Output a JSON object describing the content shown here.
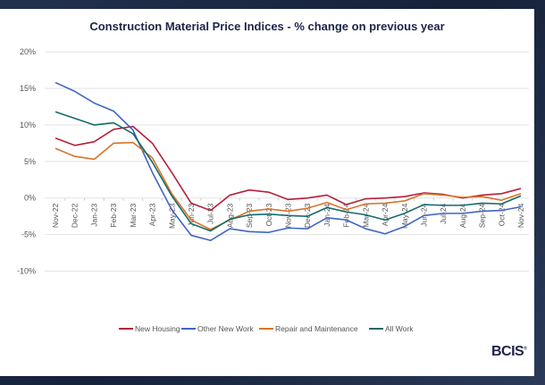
{
  "chart_data": {
    "type": "line",
    "title": "Construction Material Price Indices - % change on previous year",
    "xlabel": "",
    "ylabel": "",
    "ylim": [
      -10,
      20
    ],
    "yticks": [
      "-10%",
      "-5%",
      "0%",
      "5%",
      "10%",
      "15%",
      "20%"
    ],
    "ytick_values": [
      -10,
      -5,
      0,
      5,
      10,
      15,
      20
    ],
    "grid": true,
    "legend_position": "bottom",
    "categories": [
      "Nov-22",
      "Dec-22",
      "Jan-23",
      "Feb-23",
      "Mar-23",
      "Apr-23",
      "May-23",
      "Jun-23",
      "Jul-23",
      "Aug-23",
      "Sep-23",
      "Oct-23",
      "Nov-23",
      "Dec-23",
      "Jan-24",
      "Feb-24",
      "Mar-24",
      "Apr-24",
      "May-24",
      "Jun-24",
      "Jul-24",
      "Aug-24",
      "Sep-24",
      "Oct-24",
      "Nov-24"
    ],
    "series": [
      {
        "name": "New Housing",
        "color": "#b5213d",
        "values": [
          8.2,
          7.2,
          7.7,
          9.4,
          9.8,
          7.5,
          3.5,
          -0.7,
          -1.7,
          0.4,
          1.1,
          0.8,
          -0.2,
          0.0,
          0.4,
          -0.9,
          -0.1,
          0.0,
          0.2,
          0.7,
          0.5,
          0.0,
          0.4,
          0.6,
          1.3
        ]
      },
      {
        "name": "Other New Work",
        "color": "#4064c4",
        "values": [
          15.8,
          14.6,
          13.0,
          11.9,
          9.3,
          3.5,
          -1.6,
          -5.1,
          -5.8,
          -4.2,
          -4.6,
          -4.7,
          -4.1,
          -4.2,
          -2.7,
          -3.0,
          -4.2,
          -4.9,
          -3.9,
          -2.4,
          -2.1,
          -2.1,
          -1.8,
          -1.7,
          -1.2
        ]
      },
      {
        "name": "Repair and Maintenance",
        "color": "#d8742a",
        "values": [
          6.8,
          5.7,
          5.3,
          7.5,
          7.6,
          5.5,
          0.6,
          -3.0,
          -4.3,
          -3.0,
          -1.8,
          -1.5,
          -1.8,
          -1.4,
          -0.6,
          -1.6,
          -0.8,
          -0.7,
          -0.4,
          0.6,
          0.4,
          0.1,
          0.2,
          -0.3,
          0.6
        ]
      },
      {
        "name": "All Work",
        "color": "#156b6b",
        "values": [
          11.8,
          10.9,
          10.0,
          10.3,
          8.8,
          4.9,
          0.3,
          -3.5,
          -4.5,
          -2.9,
          -2.3,
          -2.2,
          -2.4,
          -2.5,
          -1.3,
          -1.9,
          -2.3,
          -3.0,
          -2.1,
          -0.9,
          -1.0,
          -1.0,
          -0.7,
          -0.8,
          0.3
        ]
      }
    ]
  },
  "logo": "BCIS"
}
